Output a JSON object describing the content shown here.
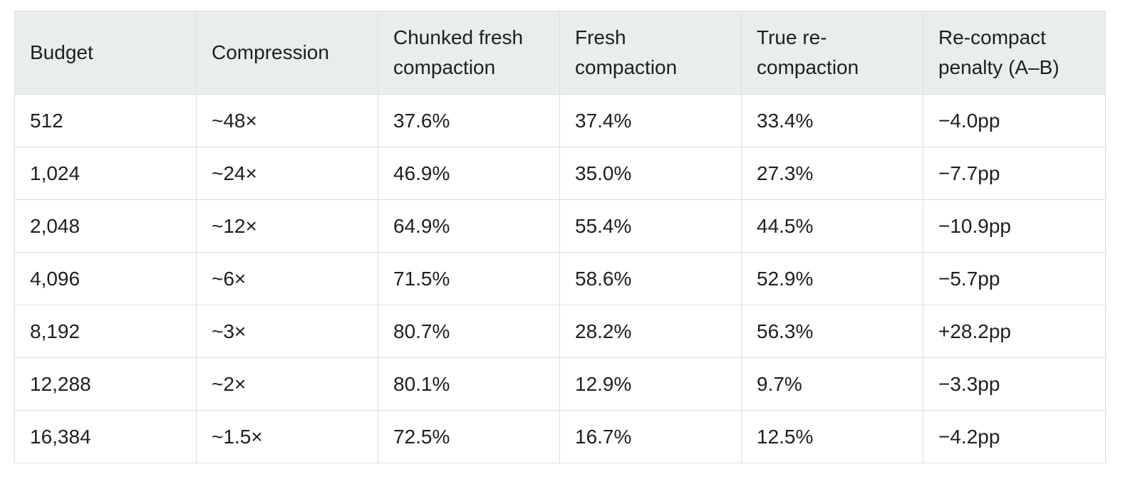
{
  "table": {
    "headers": [
      "Budget",
      "Compression",
      "Chunked fresh compaction",
      "Fresh compaction",
      "True re-compaction",
      "Re-compact penalty (A–B)"
    ],
    "rows": [
      [
        "512",
        "~48×",
        "37.6%",
        "37.4%",
        "33.4%",
        "−4.0pp"
      ],
      [
        "1,024",
        "~24×",
        "46.9%",
        "35.0%",
        "27.3%",
        "−7.7pp"
      ],
      [
        "2,048",
        "~12×",
        "64.9%",
        "55.4%",
        "44.5%",
        "−10.9pp"
      ],
      [
        "4,096",
        "~6×",
        "71.5%",
        "58.6%",
        "52.9%",
        "−5.7pp"
      ],
      [
        "8,192",
        "~3×",
        "80.7%",
        "28.2%",
        "56.3%",
        "+28.2pp"
      ],
      [
        "12,288",
        "~2×",
        "80.1%",
        "12.9%",
        "9.7%",
        "−3.3pp"
      ],
      [
        "16,384",
        "~1.5×",
        "72.5%",
        "16.7%",
        "12.5%",
        "−4.2pp"
      ]
    ]
  },
  "colors": {
    "header_background": "#e8efeb",
    "border": "#dcdfdd",
    "text": "#1f1f1f"
  }
}
